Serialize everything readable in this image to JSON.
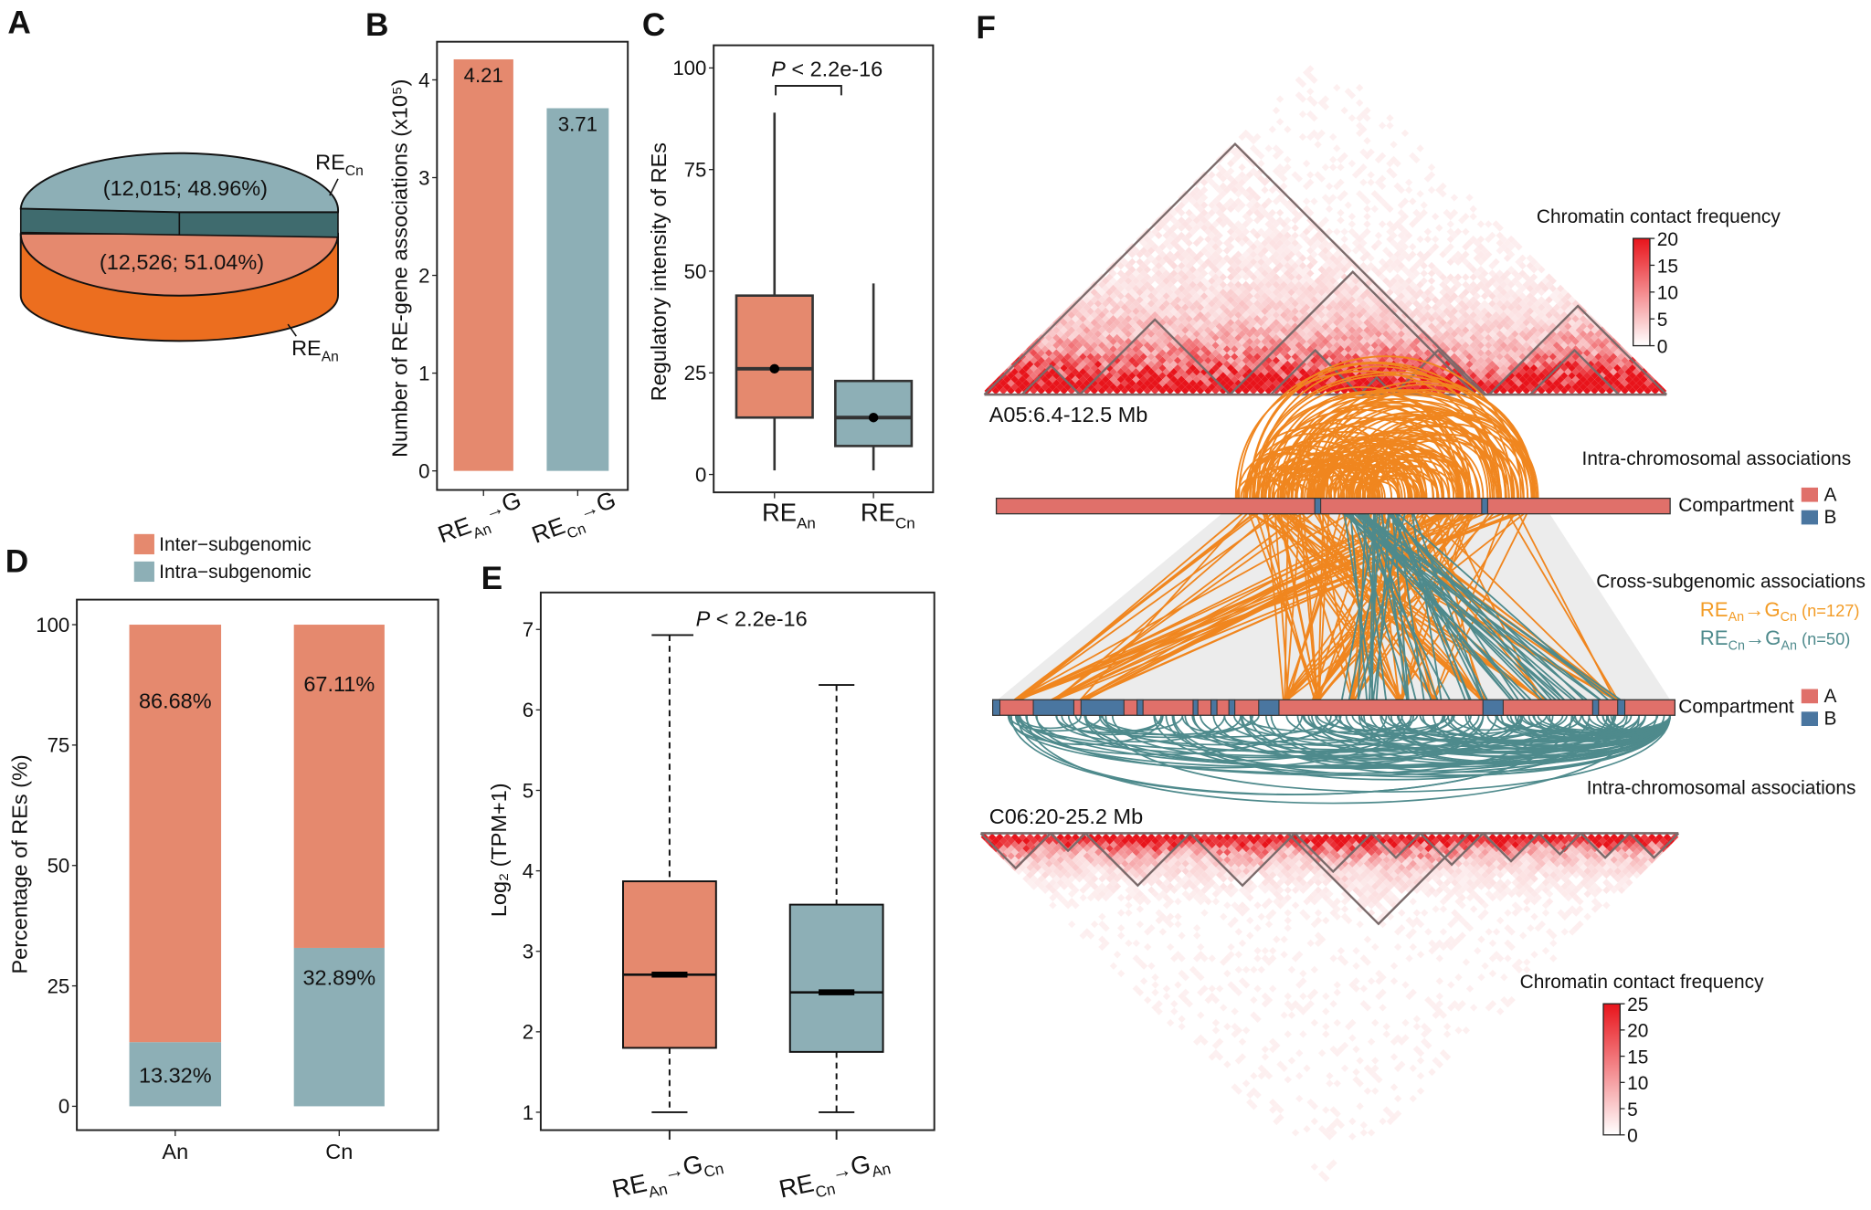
{
  "panels": {
    "a": "A",
    "b": "B",
    "c": "C",
    "d": "D",
    "e": "E",
    "f": "F"
  },
  "colors": {
    "an_salmon": "#E5896E",
    "cn_teal": "#8DAFB6",
    "pie_side_orange": "#EC6E1F",
    "pie_band_dark": "#3F6B6E",
    "link_orange": "#F0861F",
    "link_teal": "#4E8A8C",
    "legend_orange_text": "#F39C26",
    "compartment_a": "#E0706A",
    "compartment_b": "#4A76A0",
    "heat_max": "#E8141B"
  },
  "chart_data": [
    {
      "id": "A",
      "type": "pie",
      "slices": [
        {
          "label": "RE",
          "label_sub": "Cn",
          "value": 12015,
          "percent": 48.96,
          "text": "(12,015; 48.96%)"
        },
        {
          "label": "RE",
          "label_sub": "An",
          "value": 12526,
          "percent": 51.04,
          "text": "(12,526; 51.04%)"
        }
      ]
    },
    {
      "id": "B",
      "type": "bar",
      "categories": [
        {
          "main": "RE",
          "sub": "An",
          "arrow": "→",
          "target": "G",
          "target_sub": ""
        },
        {
          "main": "RE",
          "sub": "Cn",
          "arrow": "→",
          "target": "G",
          "target_sub": ""
        }
      ],
      "values": [
        4.21,
        3.71
      ],
      "value_labels": [
        "4.21",
        "3.71"
      ],
      "ylabel": "Number of RE-gene associations (x10⁵)",
      "ylim": [
        0,
        4.2
      ],
      "yticks": [
        "0",
        "1",
        "2",
        "3",
        "4"
      ]
    },
    {
      "id": "C",
      "type": "box",
      "categories": [
        {
          "main": "RE",
          "sub": "An"
        },
        {
          "main": "RE",
          "sub": "Cn"
        }
      ],
      "boxes": [
        {
          "min": 1,
          "q1": 14,
          "median": 26,
          "mean": 26,
          "q3": 44,
          "max": 89
        },
        {
          "min": 1,
          "q1": 7,
          "median": 14,
          "mean": 14,
          "q3": 23,
          "max": 47
        }
      ],
      "ylabel": "Regulatory intensity of REs",
      "ylim": [
        0,
        100
      ],
      "yticks": [
        "0",
        "25",
        "50",
        "75",
        "100"
      ],
      "pvalue": {
        "italic": "P",
        "text": " < 2.2e-16"
      }
    },
    {
      "id": "D",
      "type": "bar",
      "stacked": true,
      "categories": [
        "An",
        "Cn"
      ],
      "series": [
        {
          "name": "Inter−subgenomic",
          "values": [
            86.68,
            67.11
          ],
          "labels": [
            "86.68%",
            "67.11%"
          ]
        },
        {
          "name": "Intra−subgenomic",
          "values": [
            13.32,
            32.89
          ],
          "labels": [
            "13.32%",
            "32.89%"
          ]
        }
      ],
      "ylabel": "Percentage of  REs (%)",
      "ylim": [
        0,
        100
      ],
      "yticks": [
        "0",
        "25",
        "50",
        "75",
        "100"
      ],
      "legend": "top"
    },
    {
      "id": "E",
      "type": "box",
      "categories": [
        {
          "main": "RE",
          "sub": "An",
          "arrow": "→",
          "target": "G",
          "target_sub": "Cn"
        },
        {
          "main": "RE",
          "sub": "Cn",
          "arrow": "→",
          "target": "G",
          "target_sub": "An"
        }
      ],
      "boxes": [
        {
          "min": 1,
          "q1": 1.8,
          "median": 2.71,
          "q3": 3.87,
          "max": 6.93
        },
        {
          "min": 1,
          "q1": 1.75,
          "median": 2.49,
          "q3": 3.58,
          "max": 6.31
        }
      ],
      "ylabel": "Log₂ (TPM+1)",
      "ylim": [
        1,
        7
      ],
      "yticks": [
        "1",
        "2",
        "3",
        "4",
        "5",
        "6",
        "7"
      ],
      "pvalue": {
        "italic": "P",
        "text": " < 2.2e-16"
      }
    },
    {
      "id": "F",
      "type": "heatmap",
      "regions": [
        {
          "label": "A05:6.4-12.5 Mb",
          "legend_title": "Chromatin contact frequency",
          "scale_ticks": [
            "20",
            "15",
            "10",
            "5",
            "0"
          ],
          "scale_max": 20
        },
        {
          "label": "C06:20-25.2 Mb",
          "legend_title": "Chromatin contact frequency",
          "scale_ticks": [
            "25",
            "20",
            "15",
            "10",
            "5",
            "0"
          ],
          "scale_max": 25
        }
      ],
      "intra_label": "Intra-chromosomal associations",
      "cross_label": "Cross-subgenomic associations",
      "compartment_label": "Compartment",
      "compartment_types": [
        "A",
        "B"
      ],
      "cross_links": [
        {
          "main": "RE",
          "sub": "An",
          "arrow": "→",
          "target": "G",
          "target_sub": "Cn",
          "count_text": "(n=127)",
          "n": 127
        },
        {
          "main": "RE",
          "sub": "Cn",
          "arrow": "→",
          "target": "G",
          "target_sub": "An",
          "count_text": "(n=50)",
          "n": 50
        }
      ]
    }
  ]
}
